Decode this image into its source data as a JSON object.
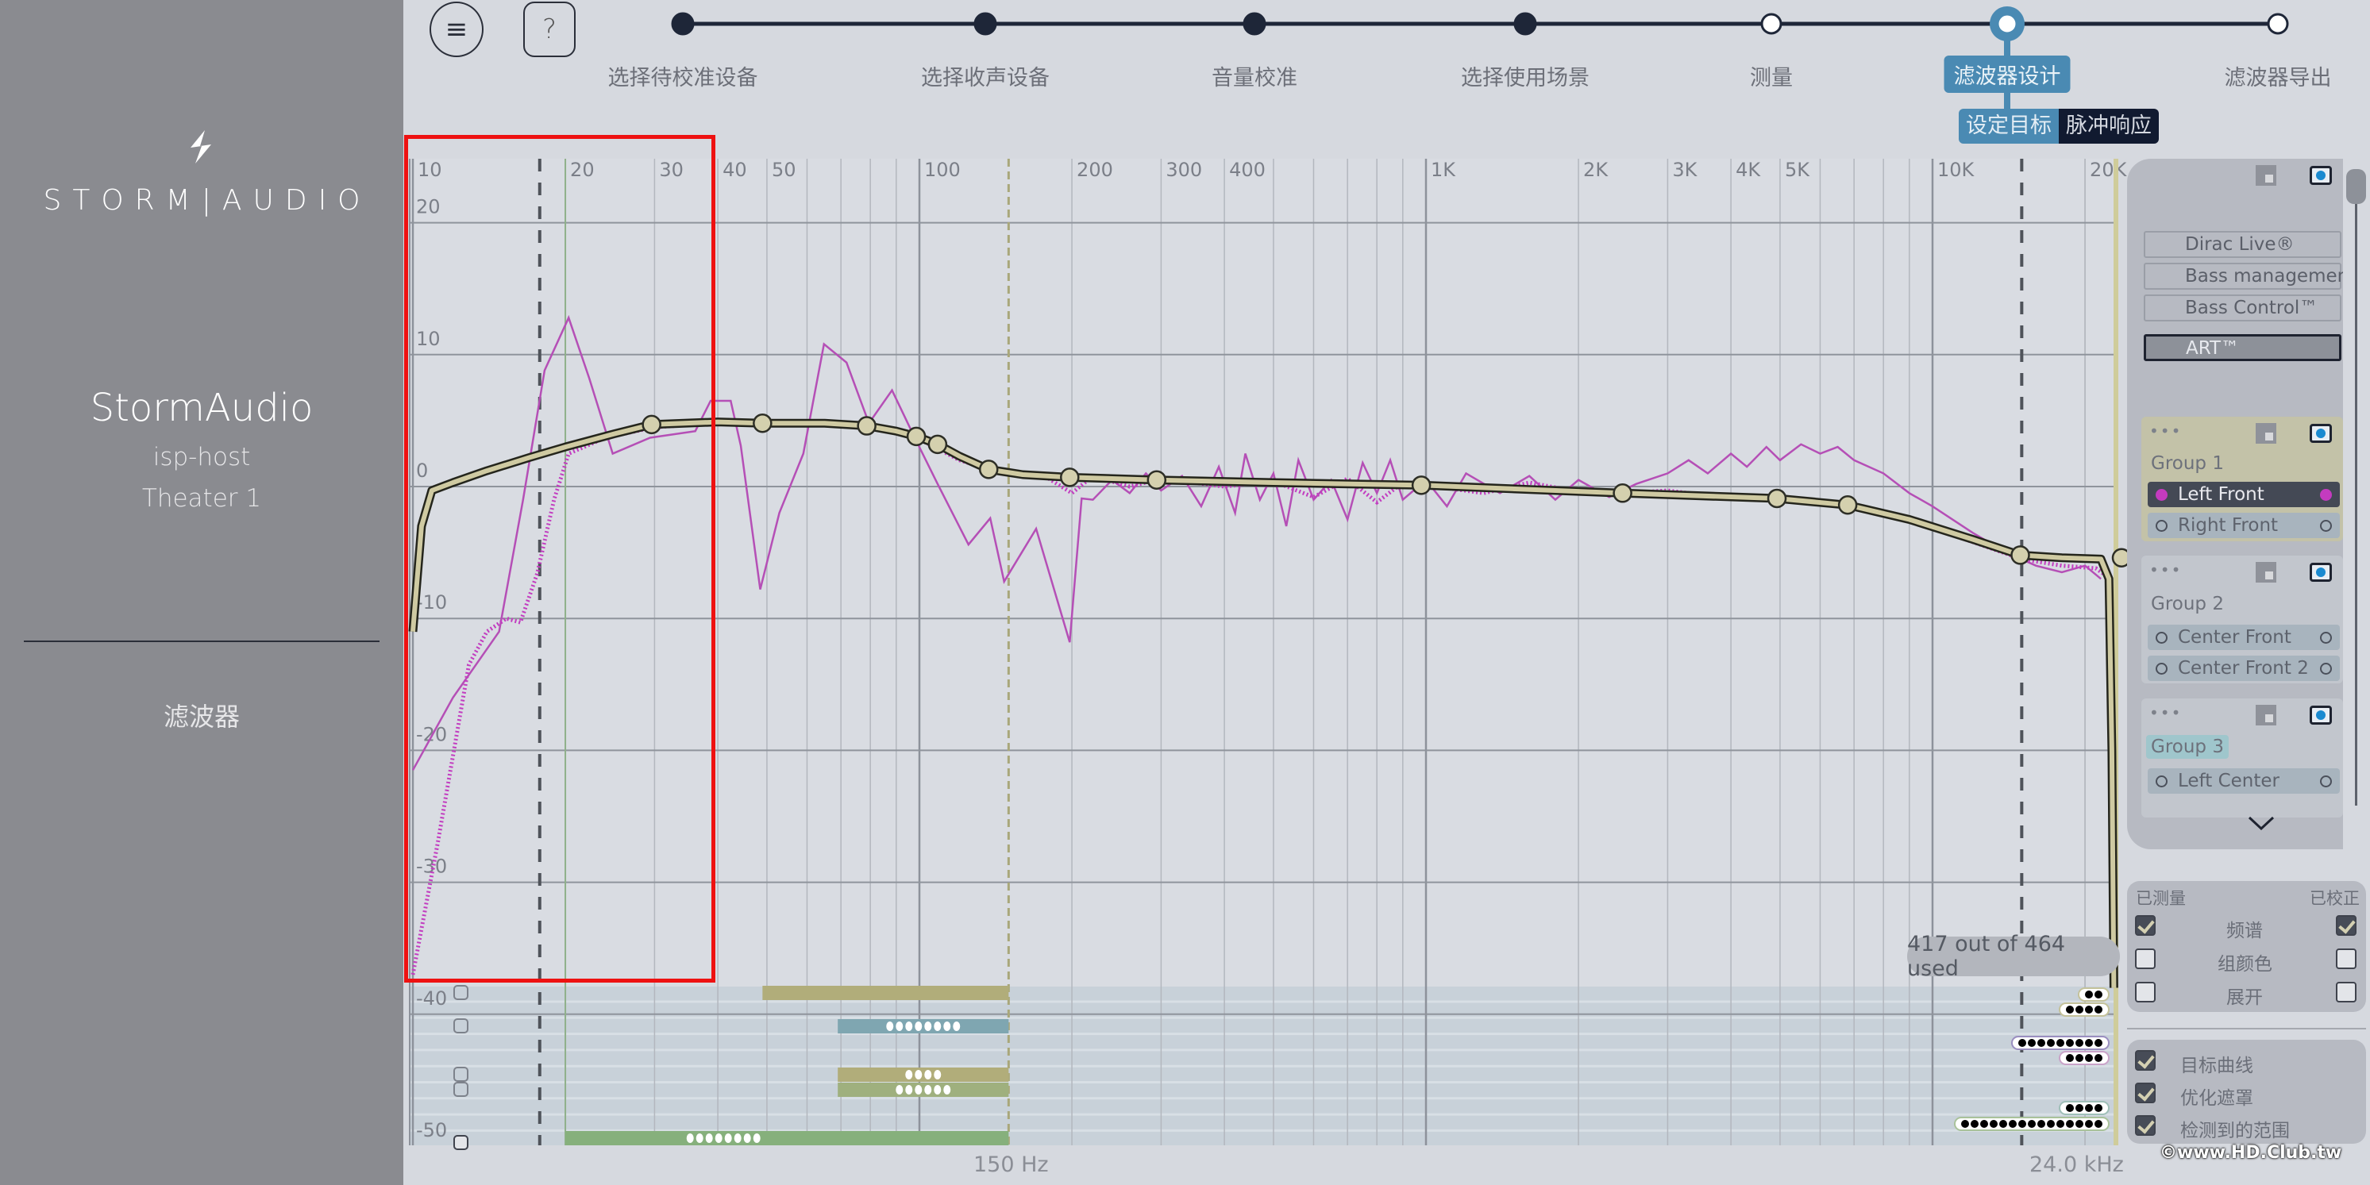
{
  "sidebar": {
    "logo_text": "STORM|AUDIO",
    "device_name": "StormAudio",
    "host": "isp-host",
    "room": "Theater 1",
    "nav_item": "滤波器"
  },
  "toolbar": {
    "menu_icon": "≡",
    "help_label": "?"
  },
  "stepper": {
    "steps": [
      {
        "label": "选择待校准设备",
        "state": "done"
      },
      {
        "label": "选择收声设备",
        "state": "done"
      },
      {
        "label": "音量校准",
        "state": "done"
      },
      {
        "label": "选择使用场景",
        "state": "done"
      },
      {
        "label": "测量",
        "state": "todo"
      },
      {
        "label": "滤波器设计",
        "state": "active"
      },
      {
        "label": "滤波器导出",
        "state": "todo"
      }
    ],
    "subtabs": [
      {
        "label": "设定目标",
        "active": true
      },
      {
        "label": "脉冲响应",
        "active": false
      }
    ]
  },
  "colors": {
    "accent": "#4a8ab3",
    "measured": "#b54fb6",
    "corrected": "#c23cc0",
    "target": "#cfcaa2",
    "highlight_box": "#ee1111"
  },
  "chart_data": {
    "type": "line",
    "x_scale": "log",
    "xlim": [
      10,
      24000
    ],
    "ylim": [
      -50,
      22
    ],
    "x_ticks": [
      {
        "v": 10,
        "l": "10"
      },
      {
        "v": 20,
        "l": "20"
      },
      {
        "v": 30,
        "l": "30"
      },
      {
        "v": 40,
        "l": "40"
      },
      {
        "v": 50,
        "l": "50"
      },
      {
        "v": 100,
        "l": "100"
      },
      {
        "v": 200,
        "l": "200"
      },
      {
        "v": 300,
        "l": "300"
      },
      {
        "v": 400,
        "l": "400"
      },
      {
        "v": 1000,
        "l": "1K"
      },
      {
        "v": 2000,
        "l": "2K"
      },
      {
        "v": 3000,
        "l": "3K"
      },
      {
        "v": 4000,
        "l": "4K"
      },
      {
        "v": 5000,
        "l": "5K"
      },
      {
        "v": 10000,
        "l": "10K"
      },
      {
        "v": 20000,
        "l": "20K"
      }
    ],
    "y_ticks": [
      {
        "v": 20,
        "l": "20"
      },
      {
        "v": 10,
        "l": "10"
      },
      {
        "v": 0,
        "l": "0"
      },
      {
        "v": -10,
        "l": "-10"
      },
      {
        "v": -20,
        "l": "-20"
      },
      {
        "v": -30,
        "l": "-30"
      },
      {
        "v": -40,
        "l": "-40"
      },
      {
        "v": -50,
        "l": "-50"
      }
    ],
    "grid": true,
    "markers": [
      {
        "f": 17.8,
        "style": "dark-dashed"
      },
      {
        "f": 20,
        "style": "green-solid"
      },
      {
        "f": 150,
        "style": "olive-dashed",
        "label": "150 Hz"
      },
      {
        "f": 15000,
        "style": "dark-dashed"
      },
      {
        "f": 24000,
        "style": "yellow-solid",
        "label": "24.0 kHz"
      }
    ],
    "series": [
      {
        "role": "target",
        "points": [
          [
            10,
            -11
          ],
          [
            10.4,
            -3
          ],
          [
            10.9,
            -0.3
          ],
          [
            12,
            0.3
          ],
          [
            14,
            1.2
          ],
          [
            17,
            2.2
          ],
          [
            20,
            3
          ],
          [
            25,
            4
          ],
          [
            29.6,
            4.7
          ],
          [
            40,
            4.9
          ],
          [
            49,
            4.8
          ],
          [
            65,
            4.8
          ],
          [
            78.7,
            4.6
          ],
          [
            90,
            4.2
          ],
          [
            98.6,
            3.8
          ],
          [
            108.6,
            3.2
          ],
          [
            120,
            2.3
          ],
          [
            137,
            1.3
          ],
          [
            160,
            0.9
          ],
          [
            198,
            0.7
          ],
          [
            294,
            0.5
          ],
          [
            500,
            0.3
          ],
          [
            979,
            0.1
          ],
          [
            2444,
            -0.5
          ],
          [
            4930,
            -0.9
          ],
          [
            6800,
            -1.4
          ],
          [
            9000,
            -2.5
          ],
          [
            12000,
            -4
          ],
          [
            14900,
            -5.2
          ],
          [
            18000,
            -5.4
          ],
          [
            21500,
            -5.5
          ],
          [
            22300,
            -7
          ],
          [
            22600,
            -20
          ],
          [
            22800,
            -38
          ]
        ],
        "control_points": [
          [
            29.6,
            4.7
          ],
          [
            49,
            4.8
          ],
          [
            78.7,
            4.6
          ],
          [
            98.6,
            3.8
          ],
          [
            108.6,
            3.2
          ],
          [
            137,
            1.3
          ],
          [
            198,
            0.7
          ],
          [
            294,
            0.5
          ],
          [
            979,
            0.1
          ],
          [
            2444,
            -0.5
          ],
          [
            4930,
            -0.9
          ],
          [
            6800,
            -1.4
          ],
          [
            14900,
            -5.2
          ],
          [
            24000,
            -5.4
          ]
        ]
      },
      {
        "role": "measured",
        "points": [
          [
            10,
            -21.5
          ],
          [
            12,
            -16
          ],
          [
            14.8,
            -11
          ],
          [
            16.5,
            -1
          ],
          [
            18.2,
            8.8
          ],
          [
            20.3,
            12.8
          ],
          [
            22.3,
            8.2
          ],
          [
            24.8,
            2.5
          ],
          [
            29.4,
            3.7
          ],
          [
            36.1,
            4.2
          ],
          [
            38.7,
            6.5
          ],
          [
            42.4,
            6.5
          ],
          [
            44.4,
            3.1
          ],
          [
            48.5,
            -7.8
          ],
          [
            52.9,
            -2
          ],
          [
            59,
            2.5
          ],
          [
            64.8,
            10.8
          ],
          [
            71.8,
            9.4
          ],
          [
            79.5,
            4.8
          ],
          [
            88.3,
            7.3
          ],
          [
            97.9,
            3.7
          ],
          [
            108.6,
            0.2
          ],
          [
            125,
            -4.4
          ],
          [
            138,
            -2.4
          ],
          [
            147,
            -7.2
          ],
          [
            170,
            -3.2
          ],
          [
            198,
            -11.8
          ],
          [
            209,
            -0.9
          ],
          [
            220,
            -1
          ],
          [
            240,
            0.5
          ],
          [
            260,
            -0.5
          ],
          [
            280,
            1
          ],
          [
            300,
            -0.3
          ],
          [
            330,
            0.8
          ],
          [
            360,
            -1.5
          ],
          [
            390,
            1.5
          ],
          [
            420,
            -2
          ],
          [
            440,
            2.5
          ],
          [
            470,
            -1
          ],
          [
            500,
            1
          ],
          [
            530,
            -3
          ],
          [
            560,
            2
          ],
          [
            600,
            -1
          ],
          [
            650,
            0.5
          ],
          [
            700,
            -2.5
          ],
          [
            750,
            1.8
          ],
          [
            800,
            -0.5
          ],
          [
            850,
            2
          ],
          [
            900,
            -1
          ],
          [
            1000,
            0.5
          ],
          [
            1100,
            -1.5
          ],
          [
            1200,
            1
          ],
          [
            1400,
            -0.5
          ],
          [
            1600,
            0.8
          ],
          [
            1800,
            -1
          ],
          [
            2000,
            0.5
          ],
          [
            2300,
            -0.8
          ],
          [
            2600,
            0.2
          ],
          [
            3000,
            1
          ],
          [
            3300,
            2
          ],
          [
            3600,
            1
          ],
          [
            4000,
            2.5
          ],
          [
            4300,
            1.5
          ],
          [
            4700,
            3
          ],
          [
            5000,
            2
          ],
          [
            5500,
            3.2
          ],
          [
            6000,
            2.5
          ],
          [
            6500,
            3
          ],
          [
            7000,
            2
          ],
          [
            8000,
            1
          ],
          [
            9000,
            -0.5
          ],
          [
            10000,
            -1.5
          ],
          [
            12000,
            -3.5
          ],
          [
            14000,
            -5
          ],
          [
            16000,
            -6
          ],
          [
            18000,
            -6.5
          ],
          [
            20000,
            -6
          ],
          [
            21500,
            -7
          ]
        ]
      },
      {
        "role": "corrected",
        "points": [
          [
            10,
            -37
          ],
          [
            11.2,
            -27
          ],
          [
            12.9,
            -13.5
          ],
          [
            14,
            -11
          ],
          [
            15.3,
            -10
          ],
          [
            16.3,
            -10.3
          ],
          [
            17.6,
            -6.6
          ],
          [
            19,
            -1
          ],
          [
            20.3,
            2.5
          ],
          [
            24,
            3.7
          ],
          [
            30,
            4.5
          ],
          [
            40,
            4.8
          ],
          [
            60,
            4.7
          ],
          [
            80,
            4.5
          ],
          [
            100,
            3.6
          ],
          [
            120,
            2
          ],
          [
            140,
            1.2
          ],
          [
            180,
            0.6
          ],
          [
            200,
            -0.5
          ],
          [
            220,
            0.8
          ],
          [
            260,
            0
          ],
          [
            300,
            0.6
          ],
          [
            400,
            0
          ],
          [
            500,
            0.4
          ],
          [
            600,
            -0.8
          ],
          [
            700,
            0.6
          ],
          [
            800,
            -1.2
          ],
          [
            900,
            0.3
          ],
          [
            1000,
            0.1
          ],
          [
            1300,
            -0.5
          ],
          [
            1600,
            0.3
          ],
          [
            2000,
            -0.4
          ],
          [
            2500,
            -0.5
          ],
          [
            3000,
            -0.3
          ],
          [
            4000,
            -0.9
          ],
          [
            5000,
            -1
          ],
          [
            6000,
            -1.2
          ],
          [
            7000,
            -1.6
          ],
          [
            9000,
            -2.6
          ],
          [
            12000,
            -4.2
          ],
          [
            15000,
            -5.5
          ],
          [
            18000,
            -6
          ],
          [
            21000,
            -6.2
          ],
          [
            22500,
            -7
          ]
        ]
      }
    ],
    "filter_bands_low": [
      {
        "from": 49,
        "to": 150,
        "color": "#b1ad7a",
        "dots": 0
      },
      {
        "from": 69,
        "to": 150,
        "color": "#7fa6b1",
        "dots": 8
      },
      {
        "from": 69,
        "to": 150,
        "color": "#b1ad7a",
        "dots": 4
      },
      {
        "from": 69,
        "to": 150,
        "color": "#9fb07e",
        "dots": 6
      },
      {
        "from": 20,
        "to": 150,
        "color": "#86b07c",
        "dots": 8
      }
    ],
    "filter_bands_high": [
      {
        "dots": 2,
        "border": "#c4c29a"
      },
      {
        "dots": 4,
        "border": "#c4c29a"
      },
      {
        "dots": 9,
        "border": "#9a8ec0"
      },
      {
        "dots": 4,
        "border": "#c9a3c8"
      },
      {
        "dots": 4,
        "border": "#9fbfb8"
      },
      {
        "dots": 15,
        "border": "#a9c29a"
      }
    ]
  },
  "usage": {
    "label": "417 out of 464 used"
  },
  "right_panel": {
    "modes": [
      {
        "label": "Dirac Live®"
      },
      {
        "label": "Bass management"
      },
      {
        "label": "Bass Control™"
      },
      {
        "label": "ART™",
        "selected": true
      }
    ],
    "groups": [
      {
        "title": "Group 1",
        "channels": [
          {
            "name": "Left Front",
            "selected": true
          },
          {
            "name": "Right Front"
          }
        ]
      },
      {
        "title": "Group 2",
        "channels": [
          {
            "name": "Center Front"
          },
          {
            "name": "Center Front 2"
          }
        ]
      },
      {
        "title": "Group 3",
        "channels": [
          {
            "name": "Left Center"
          }
        ]
      }
    ],
    "more_icon": "•••"
  },
  "display_options": {
    "measured_header": "已测量",
    "corrected_header": "已校正",
    "rows": [
      {
        "label": "频谱",
        "measured": true,
        "corrected": true
      },
      {
        "label": "组颜色",
        "measured": false,
        "corrected": false
      },
      {
        "label": "展开",
        "measured": false,
        "corrected": false
      }
    ]
  },
  "overlay_options": [
    {
      "label": "目标曲线",
      "checked": true
    },
    {
      "label": "优化遮罩",
      "checked": true
    },
    {
      "label": "检测到的范围",
      "checked": true
    }
  ],
  "watermark": "©www.HD.Club.tw"
}
